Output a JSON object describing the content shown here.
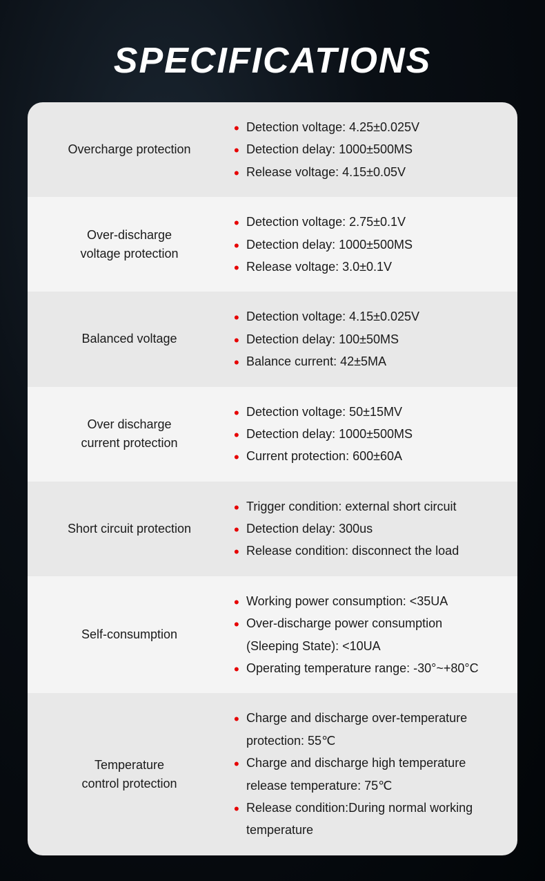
{
  "title": "SPECIFICATIONS",
  "colors": {
    "bullet": "#e60000",
    "text": "#1a1a1a",
    "row_bg": "#e8e8e8",
    "row_alt_bg": "#f4f4f4",
    "page_bg_dark": "#020508",
    "title_color": "#ffffff"
  },
  "typography": {
    "title_fontsize": 52,
    "title_weight": 900,
    "body_fontsize": 18
  },
  "rows": [
    {
      "label": "Overcharge protection",
      "items": [
        "Detection voltage: 4.25±0.025V",
        "Detection delay: 1000±500MS",
        "Release voltage: 4.15±0.05V"
      ]
    },
    {
      "label": "Over-discharge\nvoltage protection",
      "items": [
        "Detection voltage: 2.75±0.1V",
        "Detection delay: 1000±500MS",
        "Release voltage: 3.0±0.1V"
      ]
    },
    {
      "label": "Balanced voltage",
      "items": [
        "Detection voltage: 4.15±0.025V",
        "Detection delay: 100±50MS",
        "Balance current: 42±5MA"
      ]
    },
    {
      "label": "Over discharge\ncurrent protection",
      "items": [
        "Detection voltage: 50±15MV",
        "Detection delay: 1000±500MS",
        "Current protection: 600±60A"
      ]
    },
    {
      "label": "Short circuit protection",
      "items": [
        "Trigger condition: external short circuit",
        "Detection delay: 300us",
        "Release condition: disconnect the load"
      ]
    },
    {
      "label": "Self-consumption",
      "items": [
        "Working power consumption: <35UA",
        "Over-discharge power consumption\n(Sleeping State): <10UA",
        "Operating temperature range: -30°~+80°C"
      ]
    },
    {
      "label": "Temperature\ncontrol protection",
      "items": [
        "Charge and discharge over-temperature\nprotection: 55℃",
        "Charge and discharge high temperature\nrelease temperature: 75℃",
        "Release condition:During normal working\ntemperature"
      ]
    }
  ]
}
